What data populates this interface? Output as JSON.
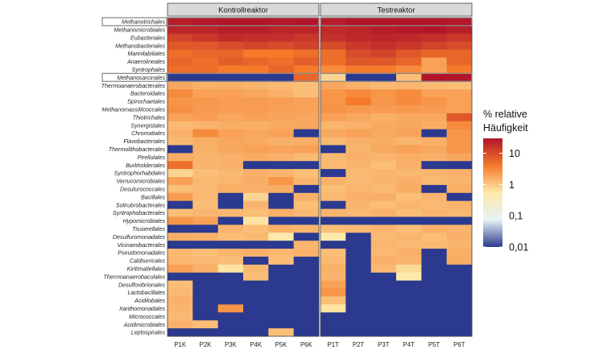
{
  "chart_data": {
    "type": "heatmap",
    "panels": [
      "Kontrollreaktor",
      "Testreaktor"
    ],
    "samples": [
      [
        "P1K",
        "P2K",
        "P3K",
        "P4K",
        "P5K",
        "P6K"
      ],
      [
        "P1T",
        "P2T",
        "P3T",
        "P4T",
        "P5T",
        "P6T"
      ]
    ],
    "rows": [
      "Methanotrichales",
      "Methanomicrobiales",
      "Eubacteriales",
      "Methanobacteriales",
      "Marinilabiliales",
      "Anaerolineales",
      "Syntrophales",
      "Methanosarcinales",
      "Thermoanaerobacterales",
      "Bacteroidales",
      "Spirochaetales",
      "Methanomassiliicoccales",
      "Thiotrichales",
      "Synergistales",
      "Chromatiales",
      "Flavobacteriales",
      "Thermolithobacterales",
      "Pirellulales",
      "Burkholderiales",
      "Syntrophorhabdales",
      "Verrucomicrobiales",
      "Desulurococcales",
      "Bacillales",
      "Solirubrobacterales",
      "Syntrophobacterales",
      "Hypomicrobiales",
      "Tissierellales",
      "Desulfuromonadales",
      "Vicinamibacterales",
      "Pseudomonadales",
      "Caldisericales",
      "Kiritimatiellales",
      "Thermoanaerobaculales",
      "Desulfovibrionales",
      "Lactobacillales",
      "Acidilobales",
      "Xanthomonadales",
      "Micrococcales",
      "Acidimicrobiales",
      "Leptospirales"
    ],
    "highlighted_rows": [
      "Methanotrichales",
      "Methanosarcinales"
    ],
    "values": {
      "Kontrollreaktor": [
        [
          25,
          28,
          30,
          30,
          28,
          30
        ],
        [
          22,
          22,
          25,
          25,
          22,
          22
        ],
        [
          12,
          15,
          20,
          18,
          18,
          15
        ],
        [
          8,
          8,
          10,
          12,
          10,
          12
        ],
        [
          5,
          6,
          6,
          4,
          4,
          5
        ],
        [
          6,
          5,
          7,
          6,
          5,
          7
        ],
        [
          5,
          5,
          4,
          4,
          6,
          4
        ],
        [
          0.01,
          0.01,
          0.01,
          0.01,
          0.01,
          6
        ],
        [
          1.8,
          1.5,
          1.6,
          1.4,
          1.3,
          1.2
        ],
        [
          3,
          2,
          2,
          1.8,
          1.5,
          1.2
        ],
        [
          2.5,
          2.4,
          2.2,
          2.2,
          2.1,
          2
        ],
        [
          2.8,
          2.3,
          2.1,
          2.2,
          2,
          2
        ],
        [
          2,
          2.1,
          1.8,
          2,
          1.9,
          1.8
        ],
        [
          1.3,
          1.4,
          1.6,
          1.5,
          1.7,
          1.8
        ],
        [
          1.5,
          3,
          2,
          1.8,
          2,
          0.01
        ],
        [
          1.3,
          1.6,
          1.8,
          1.7,
          1.5,
          1.6
        ],
        [
          0.01,
          1.5,
          1.8,
          2,
          1.9,
          2
        ],
        [
          1.6,
          1.4,
          1.5,
          1.7,
          1.5,
          1.3
        ],
        [
          5,
          1.4,
          1.5,
          0.01,
          0.01,
          0.01
        ],
        [
          0.8,
          1.2,
          1.3,
          1.5,
          1.4,
          1.2
        ],
        [
          2,
          1.3,
          1.4,
          1.6,
          2.5,
          1.4
        ],
        [
          1.2,
          1.3,
          1.6,
          1.5,
          1.6,
          0.01
        ],
        [
          2.2,
          1.3,
          0.01,
          0.8,
          0.01,
          1.5
        ],
        [
          0.01,
          1.2,
          0.01,
          1.4,
          0.01,
          1.2
        ],
        [
          1.2,
          1.4,
          1.3,
          1.2,
          1.5,
          1.3
        ],
        [
          2.5,
          2,
          0.01,
          0.6,
          0.01,
          0.01
        ],
        [
          0.01,
          0.01,
          1.4,
          1.2,
          1.5,
          1.4
        ],
        [
          1.6,
          1.5,
          1.2,
          1.3,
          0.5,
          0.01
        ],
        [
          0.01,
          0.01,
          0.01,
          0.01,
          0.01,
          1.4
        ],
        [
          1.3,
          1.2,
          1.4,
          1.5,
          1.3,
          1.5
        ],
        [
          1.4,
          1.3,
          1.2,
          0.01,
          1.2,
          0.01
        ],
        [
          2,
          1.5,
          0.6,
          1.3,
          0.01,
          0.01
        ],
        [
          0.01,
          0.01,
          0.01,
          1.2,
          0.01,
          0.01
        ],
        [
          1.2,
          0.01,
          0.01,
          0.01,
          0.01,
          0.01
        ],
        [
          1.3,
          0.01,
          0.01,
          0.01,
          0.01,
          0.01
        ],
        [
          1.5,
          0.01,
          0.01,
          0.01,
          0.01,
          0.01
        ],
        [
          1.4,
          0.01,
          2.5,
          0.01,
          0.01,
          0.01
        ],
        [
          1.3,
          0.01,
          0.01,
          0.01,
          0.01,
          0.01
        ],
        [
          1.5,
          1.2,
          0.01,
          0.01,
          0.01,
          0.01
        ],
        [
          0.01,
          0.01,
          0.01,
          0.01,
          1.2,
          0.01
        ]
      ],
      "Testreaktor": [
        [
          25,
          30,
          32,
          30,
          35,
          28
        ],
        [
          20,
          22,
          25,
          28,
          30,
          25
        ],
        [
          18,
          20,
          22,
          20,
          18,
          15
        ],
        [
          10,
          15,
          18,
          15,
          12,
          10
        ],
        [
          5,
          10,
          12,
          8,
          6,
          6
        ],
        [
          5,
          8,
          8,
          6,
          2,
          6
        ],
        [
          3,
          4,
          4,
          3,
          2,
          4
        ],
        [
          0.8,
          0.01,
          0.01,
          1.2,
          30,
          30
        ],
        [
          1.8,
          1.5,
          1.3,
          1.4,
          1.3,
          1.2
        ],
        [
          2.5,
          3,
          2.5,
          3,
          2,
          2
        ],
        [
          2.5,
          4,
          2.5,
          3,
          2.5,
          2
        ],
        [
          2.6,
          2.3,
          2.2,
          2.3,
          2.2,
          2
        ],
        [
          2,
          1.8,
          1.5,
          1.7,
          1.8,
          8
        ],
        [
          1.4,
          1.5,
          1.7,
          1.8,
          1.6,
          3
        ],
        [
          1.8,
          2,
          1.7,
          1.9,
          0.01,
          2.5
        ],
        [
          1.3,
          1.5,
          1.6,
          1.4,
          1.5,
          2.5
        ],
        [
          0.01,
          1.4,
          1.7,
          2,
          1.8,
          2.5
        ],
        [
          1.3,
          1.5,
          1.4,
          1.6,
          1.5,
          1.8
        ],
        [
          1.3,
          1.4,
          1.2,
          1.5,
          0.01,
          0.01
        ],
        [
          0.01,
          1.3,
          1.4,
          1.3,
          1.4,
          1.5
        ],
        [
          1.5,
          1.3,
          1.4,
          1.5,
          1.3,
          1.4
        ],
        [
          1.2,
          1.4,
          1.3,
          1.6,
          0.01,
          1.6
        ],
        [
          1.3,
          1.5,
          1.6,
          1.2,
          1.4,
          0.01
        ],
        [
          0.01,
          1.4,
          1.2,
          1.4,
          1.3,
          1.4
        ],
        [
          1.4,
          1.3,
          1.5,
          1.2,
          1.4,
          1.3
        ],
        [
          0.01,
          0.01,
          0.01,
          0.01,
          0.01,
          0.01
        ],
        [
          1.2,
          1.3,
          1.4,
          1.2,
          1.5,
          1.4
        ],
        [
          0.5,
          0.01,
          1.3,
          1.4,
          1.2,
          1.5
        ],
        [
          0.01,
          0.01,
          1.4,
          1.3,
          1.3,
          1.4
        ],
        [
          1.2,
          0.01,
          1.3,
          1.5,
          0.01,
          1.6
        ],
        [
          1.3,
          0.01,
          1.5,
          1.4,
          0.01,
          1.6
        ],
        [
          1.5,
          0.01,
          1.3,
          0.7,
          0.01,
          0.01
        ],
        [
          1.4,
          0.01,
          0.01,
          0.5,
          0.01,
          0.01
        ],
        [
          2,
          0.01,
          0.01,
          0.01,
          0.01,
          0.01
        ],
        [
          2.5,
          0.01,
          0.01,
          0.01,
          0.01,
          0.01
        ],
        [
          1.2,
          0.01,
          0.01,
          0.01,
          0.01,
          0.01
        ],
        [
          0.6,
          0.01,
          0.01,
          0.01,
          0.01,
          0.01
        ],
        [
          0.01,
          0.01,
          0.01,
          0.01,
          0.01,
          0.01
        ],
        [
          0.01,
          0.01,
          0.01,
          0.01,
          0.01,
          0.01
        ],
        [
          0.01,
          0.01,
          0.01,
          0.01,
          0.01,
          0.01
        ]
      ]
    },
    "colorbar": {
      "title_lines": [
        "% relative",
        "Häufigkeit"
      ],
      "scale": "log",
      "range": [
        0.01,
        30
      ],
      "ticks": [
        10,
        1,
        0.1,
        0.01
      ],
      "tick_labels": [
        "10",
        "1",
        "0,1",
        "0,01"
      ],
      "colors": [
        "#2b3a8f",
        "#e6f2f4",
        "#fde9a9",
        "#f57a2a",
        "#b2152a"
      ]
    },
    "grid": false,
    "legend_position": "right"
  }
}
